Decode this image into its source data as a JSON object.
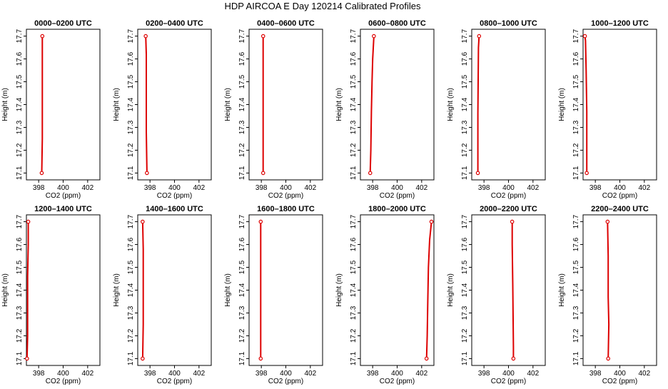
{
  "title": "HDP AIRCOA E  Day 120214  Calibrated Profiles",
  "colors": {
    "series": "#dd0000",
    "axes": "#000000",
    "background": "#ffffff"
  },
  "chart_data": [
    {
      "type": "line",
      "title": "0000–0200 UTC",
      "xlabel": "CO2 (ppm)",
      "ylabel": "Height (m)",
      "xlim": [
        397,
        403
      ],
      "ylim": [
        17.07,
        17.73
      ],
      "xticks": [
        398,
        400,
        402
      ],
      "yticks": [
        17.1,
        17.2,
        17.3,
        17.4,
        17.5,
        17.6,
        17.7
      ],
      "x": [
        398.25,
        398.3,
        398.3,
        398.3
      ],
      "y": [
        17.1,
        17.25,
        17.42,
        17.7
      ],
      "markers": "open-circle",
      "grid": false
    },
    {
      "type": "line",
      "title": "0200–0400 UTC",
      "xlabel": "CO2 (ppm)",
      "ylabel": "Height (m)",
      "xlim": [
        397,
        403
      ],
      "ylim": [
        17.07,
        17.73
      ],
      "xticks": [
        398,
        400,
        402
      ],
      "yticks": [
        17.1,
        17.2,
        17.3,
        17.4,
        17.5,
        17.6,
        17.7
      ],
      "x": [
        397.75,
        397.7,
        397.7,
        397.65
      ],
      "y": [
        17.1,
        17.28,
        17.62,
        17.7
      ],
      "markers": "open-circle",
      "grid": false
    },
    {
      "type": "line",
      "title": "0400–0600 UTC",
      "xlabel": "CO2 (ppm)",
      "ylabel": "Height (m)",
      "xlim": [
        397,
        403
      ],
      "ylim": [
        17.07,
        17.73
      ],
      "xticks": [
        398,
        400,
        402
      ],
      "yticks": [
        17.1,
        17.2,
        17.3,
        17.4,
        17.5,
        17.6,
        17.7
      ],
      "x": [
        398.15,
        398.15
      ],
      "y": [
        17.1,
        17.7
      ],
      "markers": "open-circle",
      "grid": false
    },
    {
      "type": "line",
      "title": "0600–0800 UTC",
      "xlabel": "CO2 (ppm)",
      "ylabel": "Height (m)",
      "xlim": [
        397,
        403
      ],
      "ylim": [
        17.07,
        17.73
      ],
      "xticks": [
        398,
        400,
        402
      ],
      "yticks": [
        17.1,
        17.2,
        17.3,
        17.4,
        17.5,
        17.6,
        17.7
      ],
      "x": [
        397.8,
        397.85,
        397.9,
        397.95,
        398.0,
        398.1
      ],
      "y": [
        17.1,
        17.2,
        17.37,
        17.5,
        17.6,
        17.7
      ],
      "markers": "open-circle",
      "grid": false
    },
    {
      "type": "line",
      "title": "0800–1000 UTC",
      "xlabel": "CO2 (ppm)",
      "ylabel": "Height (m)",
      "xlim": [
        397,
        403
      ],
      "ylim": [
        17.07,
        17.73
      ],
      "xticks": [
        398,
        400,
        402
      ],
      "yticks": [
        17.1,
        17.2,
        17.3,
        17.4,
        17.5,
        17.6,
        17.7
      ],
      "x": [
        397.5,
        397.5,
        397.55,
        397.6
      ],
      "y": [
        17.1,
        17.36,
        17.65,
        17.7
      ],
      "markers": "open-circle",
      "grid": false
    },
    {
      "type": "line",
      "title": "1000–1200 UTC",
      "xlabel": "CO2 (ppm)",
      "ylabel": "Height (m)",
      "xlim": [
        397,
        403
      ],
      "ylim": [
        17.07,
        17.73
      ],
      "xticks": [
        398,
        400,
        402
      ],
      "yticks": [
        17.1,
        17.2,
        17.3,
        17.4,
        17.5,
        17.6,
        17.7
      ],
      "x": [
        397.3,
        397.3,
        397.25,
        397.2,
        397.15
      ],
      "y": [
        17.1,
        17.37,
        17.55,
        17.68,
        17.7
      ],
      "markers": "open-circle",
      "grid": false
    },
    {
      "type": "line",
      "title": "1200–1400 UTC",
      "xlabel": "CO2 (ppm)",
      "ylabel": "Height (m)",
      "xlim": [
        397,
        403
      ],
      "ylim": [
        17.07,
        17.73
      ],
      "xticks": [
        398,
        400,
        402
      ],
      "yticks": [
        17.1,
        17.2,
        17.3,
        17.4,
        17.5,
        17.6,
        17.7
      ],
      "x": [
        397.05,
        397.1,
        397.1,
        397.15,
        397.15
      ],
      "y": [
        17.1,
        17.2,
        17.46,
        17.6,
        17.7
      ],
      "markers": "open-circle",
      "grid": false
    },
    {
      "type": "line",
      "title": "1400–1600 UTC",
      "xlabel": "CO2 (ppm)",
      "ylabel": "Height (m)",
      "xlim": [
        397,
        403
      ],
      "ylim": [
        17.07,
        17.73
      ],
      "xticks": [
        398,
        400,
        402
      ],
      "yticks": [
        17.1,
        17.2,
        17.3,
        17.4,
        17.5,
        17.6,
        17.7
      ],
      "x": [
        397.4,
        397.45,
        397.45,
        397.4
      ],
      "y": [
        17.1,
        17.25,
        17.58,
        17.7
      ],
      "markers": "open-circle",
      "grid": false
    },
    {
      "type": "line",
      "title": "1600–1800 UTC",
      "xlabel": "CO2 (ppm)",
      "ylabel": "Height (m)",
      "xlim": [
        397,
        403
      ],
      "ylim": [
        17.07,
        17.73
      ],
      "xticks": [
        398,
        400,
        402
      ],
      "yticks": [
        17.1,
        17.2,
        17.3,
        17.4,
        17.5,
        17.6,
        17.7
      ],
      "x": [
        397.95,
        397.95,
        397.95,
        397.95
      ],
      "y": [
        17.1,
        17.4,
        17.68,
        17.7
      ],
      "markers": "open-circle",
      "grid": false
    },
    {
      "type": "line",
      "title": "1800–2000 UTC",
      "xlabel": "CO2 (ppm)",
      "ylabel": "Height (m)",
      "xlim": [
        397,
        403
      ],
      "ylim": [
        17.07,
        17.73
      ],
      "xticks": [
        398,
        400,
        402
      ],
      "yticks": [
        17.1,
        17.2,
        17.3,
        17.4,
        17.5,
        17.6,
        17.7
      ],
      "x": [
        402.4,
        402.45,
        402.5,
        402.55,
        402.65,
        402.8
      ],
      "y": [
        17.1,
        17.2,
        17.35,
        17.5,
        17.62,
        17.7
      ],
      "markers": "open-circle",
      "grid": false
    },
    {
      "type": "line",
      "title": "2000–2200 UTC",
      "xlabel": "CO2 (ppm)",
      "ylabel": "Height (m)",
      "xlim": [
        397,
        403
      ],
      "ylim": [
        17.07,
        17.73
      ],
      "xticks": [
        398,
        400,
        402
      ],
      "yticks": [
        17.1,
        17.2,
        17.3,
        17.4,
        17.5,
        17.6,
        17.7
      ],
      "x": [
        400.4,
        400.4,
        400.35,
        400.3,
        400.3
      ],
      "y": [
        17.1,
        17.15,
        17.42,
        17.6,
        17.7
      ],
      "markers": "open-circle",
      "grid": false
    },
    {
      "type": "line",
      "title": "2200–2400 UTC",
      "xlabel": "CO2 (ppm)",
      "ylabel": "Height (m)",
      "xlim": [
        397,
        403
      ],
      "ylim": [
        17.07,
        17.73
      ],
      "xticks": [
        398,
        400,
        402
      ],
      "yticks": [
        17.1,
        17.2,
        17.3,
        17.4,
        17.5,
        17.6,
        17.7
      ],
      "x": [
        399.05,
        399.1,
        399.05,
        399.05,
        399.0
      ],
      "y": [
        17.1,
        17.25,
        17.37,
        17.55,
        17.7
      ],
      "markers": "open-circle",
      "grid": false
    }
  ]
}
